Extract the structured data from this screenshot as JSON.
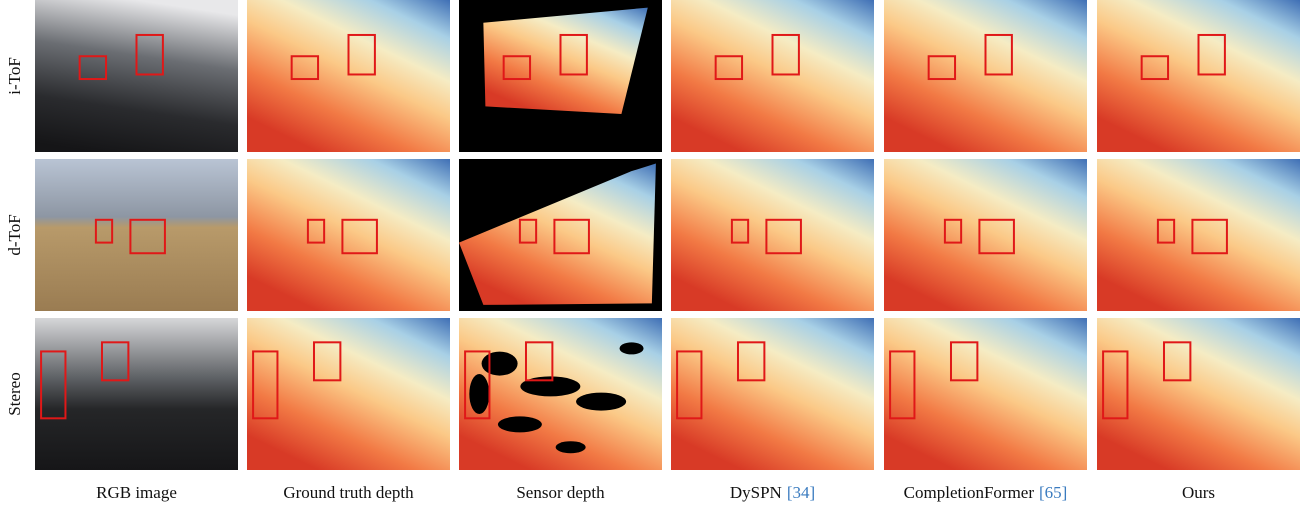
{
  "rows": [
    {
      "label": "i-ToF"
    },
    {
      "label": "d-ToF"
    },
    {
      "label": "Stereo"
    }
  ],
  "columns": [
    {
      "name": "RGB image"
    },
    {
      "name": "Ground truth depth"
    },
    {
      "name": "Sensor depth"
    },
    {
      "name": "DySPN",
      "ref": "[34]"
    },
    {
      "name": "CompletionFormer",
      "ref": "[65]"
    },
    {
      "name": "Ours"
    }
  ]
}
